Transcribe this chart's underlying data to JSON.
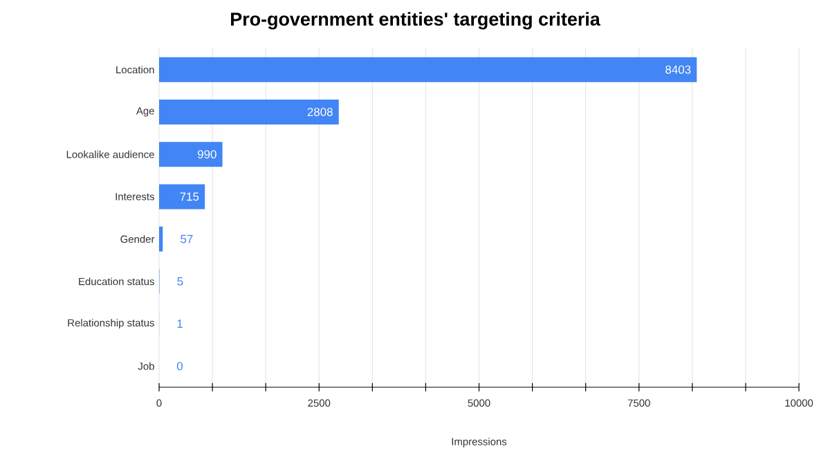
{
  "chart_data": {
    "type": "bar",
    "orientation": "horizontal",
    "title": "Pro-government entities' targeting criteria",
    "xlabel": "Impressions",
    "categories": [
      "Location",
      "Age",
      "Lookalike audience",
      "Interests",
      "Gender",
      "Education status",
      "Relationship status",
      "Job"
    ],
    "values": [
      8403,
      2808,
      990,
      715,
      57,
      5,
      1,
      0
    ],
    "color": "#4285f4",
    "xlim": [
      0,
      10000
    ],
    "xticks": [
      0,
      2500,
      5000,
      7500,
      10000
    ],
    "grid": "x",
    "data_labels": true
  }
}
